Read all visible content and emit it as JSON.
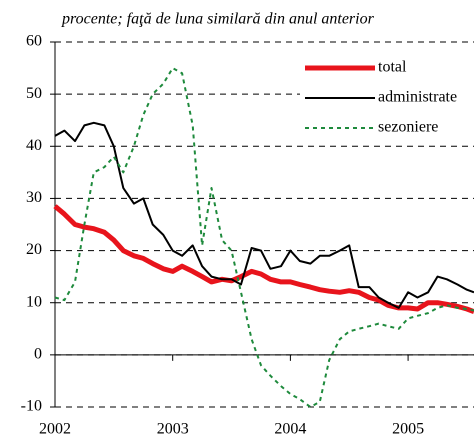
{
  "chart_data": {
    "type": "line",
    "subtitle": "procente; faţă de luna similară din anul anterior",
    "x": [
      2002.0,
      2002.08,
      2002.17,
      2002.25,
      2002.33,
      2002.42,
      2002.5,
      2002.58,
      2002.67,
      2002.75,
      2002.83,
      2002.92,
      2003.0,
      2003.08,
      2003.17,
      2003.25,
      2003.33,
      2003.42,
      2003.5,
      2003.58,
      2003.67,
      2003.75,
      2003.83,
      2003.92,
      2004.0,
      2004.08,
      2004.17,
      2004.25,
      2004.33,
      2004.42,
      2004.5,
      2004.58,
      2004.67,
      2004.75,
      2004.83,
      2004.92,
      2005.0,
      2005.08,
      2005.17,
      2005.25,
      2005.33,
      2005.42,
      2005.5,
      2005.56
    ],
    "series": [
      {
        "name": "total",
        "color": "#e8141c",
        "width": 5,
        "dash": "none",
        "values": [
          28.5,
          27,
          25,
          24.5,
          24.2,
          23.5,
          22,
          20,
          19,
          18.5,
          17.5,
          16.5,
          16,
          17,
          16,
          15,
          14,
          14.5,
          14.2,
          15,
          16,
          15.5,
          14.5,
          14,
          14,
          13.5,
          13,
          12.5,
          12.2,
          12,
          12.3,
          12,
          11,
          10.5,
          9.5,
          9,
          9,
          8.8,
          10,
          10,
          9.7,
          9.3,
          8.8,
          8.3
        ]
      },
      {
        "name": "administrate",
        "color": "#000000",
        "width": 2,
        "dash": "none",
        "values": [
          42,
          43,
          41,
          44,
          44.5,
          44,
          40,
          32,
          29,
          30,
          25,
          23,
          20,
          19,
          21,
          17,
          15,
          14.5,
          14.5,
          13.5,
          20.5,
          20,
          16.5,
          17,
          20,
          18,
          17.5,
          19,
          19,
          20,
          21,
          13,
          13,
          11,
          10,
          9,
          12,
          11,
          12,
          15,
          14.5,
          13.5,
          12.5,
          12
        ]
      },
      {
        "name": "sezoniere",
        "color": "#1e8a3c",
        "width": 2,
        "dash": "4 4",
        "values": [
          11,
          10.5,
          14,
          25,
          35,
          36,
          38,
          35,
          40,
          46,
          50,
          52,
          55,
          54,
          44,
          21,
          32,
          22,
          20,
          12,
          3,
          -2,
          -4,
          -6,
          -7.5,
          -8.5,
          -10,
          -9,
          -1,
          3,
          4.5,
          5,
          5.5,
          6,
          5.5,
          5,
          7,
          7.5,
          8,
          9,
          9.5,
          9,
          8.8,
          8.5
        ]
      }
    ],
    "xlim": [
      2002,
      2005.56
    ],
    "xticks": [
      2002,
      2003,
      2004,
      2005
    ],
    "ylim": [
      -10,
      60
    ],
    "yticks": [
      -10,
      0,
      10,
      20,
      30,
      40,
      50,
      60
    ],
    "grid": true,
    "legend": "upper right"
  }
}
